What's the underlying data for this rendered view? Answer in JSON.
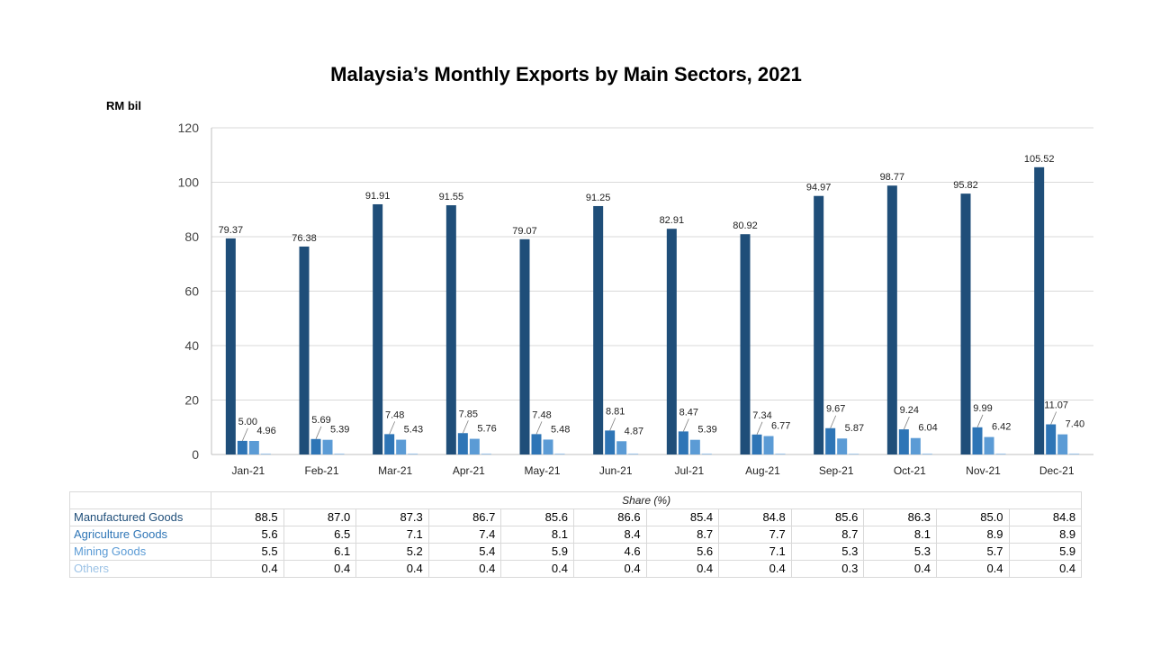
{
  "chart_data": {
    "type": "bar",
    "title": "Malaysia’s Monthly Exports by Main Sectors, 2021",
    "ylabel": "RM bil",
    "xlabel": "",
    "ylim": [
      0,
      120
    ],
    "yticks": [
      0,
      20,
      40,
      60,
      80,
      100,
      120
    ],
    "grid": true,
    "categories": [
      "Jan-21",
      "Feb-21",
      "Mar-21",
      "Apr-21",
      "May-21",
      "Jun-21",
      "Jul-21",
      "Aug-21",
      "Sep-21",
      "Oct-21",
      "Nov-21",
      "Dec-21"
    ],
    "series": [
      {
        "name": "Manufactured Goods",
        "color": "#1f4e79",
        "values": [
          79.37,
          76.38,
          91.91,
          91.55,
          79.07,
          91.25,
          82.91,
          80.92,
          94.97,
          98.77,
          95.82,
          105.52
        ],
        "labels": [
          "79.37",
          "76.38",
          "91.91",
          "91.55",
          "79.07",
          "91.25",
          "82.91",
          "80.92",
          "94.97",
          "98.77",
          "95.82",
          "105.52"
        ]
      },
      {
        "name": "Agriculture Goods",
        "color": "#2e75b6",
        "values": [
          5.0,
          5.69,
          7.48,
          7.85,
          7.48,
          8.81,
          8.47,
          7.34,
          9.67,
          9.24,
          9.99,
          11.07
        ],
        "labels": [
          "5.00",
          "5.69",
          "7.48",
          "7.85",
          "7.48",
          "8.81",
          "8.47",
          "7.34",
          "9.67",
          "9.24",
          "9.99",
          "11.07"
        ]
      },
      {
        "name": "Mining Goods",
        "color": "#5b9bd5",
        "values": [
          4.96,
          5.39,
          5.43,
          5.76,
          5.48,
          4.87,
          5.39,
          6.77,
          5.87,
          6.04,
          6.42,
          7.4
        ],
        "labels": [
          "4.96",
          "5.39",
          "5.43",
          "5.76",
          "5.48",
          "4.87",
          "5.39",
          "6.77",
          "5.87",
          "6.04",
          "6.42",
          "7.40"
        ]
      },
      {
        "name": "Others",
        "color": "#9dc3e6",
        "values": [
          0.35,
          0.35,
          0.35,
          0.35,
          0.35,
          0.35,
          0.35,
          0.35,
          0.3,
          0.35,
          0.35,
          0.35
        ],
        "labels": []
      }
    ]
  },
  "share_table": {
    "header": "Share (%)",
    "rows": [
      {
        "name": "Manufactured Goods",
        "color": "#1f4e79",
        "values": [
          "88.5",
          "87.0",
          "87.3",
          "86.7",
          "85.6",
          "86.6",
          "85.4",
          "84.8",
          "85.6",
          "86.3",
          "85.0",
          "84.8"
        ]
      },
      {
        "name": "Agriculture Goods",
        "color": "#2e75b6",
        "values": [
          "5.6",
          "6.5",
          "7.1",
          "7.4",
          "8.1",
          "8.4",
          "8.7",
          "7.7",
          "8.7",
          "8.1",
          "8.9",
          "8.9"
        ]
      },
      {
        "name": "Mining Goods",
        "color": "#5b9bd5",
        "values": [
          "5.5",
          "6.1",
          "5.2",
          "5.4",
          "5.9",
          "4.6",
          "5.6",
          "7.1",
          "5.3",
          "5.3",
          "5.7",
          "5.9"
        ]
      },
      {
        "name": "Others",
        "color": "#9dc3e6",
        "values": [
          "0.4",
          "0.4",
          "0.4",
          "0.4",
          "0.4",
          "0.4",
          "0.4",
          "0.4",
          "0.3",
          "0.4",
          "0.4",
          "0.4"
        ]
      }
    ]
  }
}
